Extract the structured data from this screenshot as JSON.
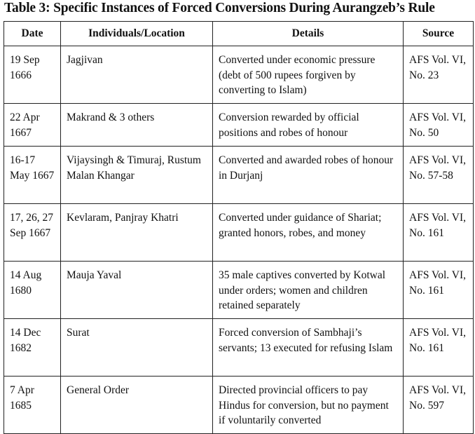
{
  "title": "Table 3: Specific Instances of Forced Conversions During Aurangzeb’s Rule",
  "headers": [
    "Date",
    "Individuals/Location",
    "Details",
    "Source"
  ],
  "rows": [
    {
      "date": "19 Sep 1666",
      "who": "Jagjivan",
      "details": "Converted under economic pressure (debt of 500 rupees forgiven by converting to Islam)",
      "source": "AFS Vol. VI, No. 23"
    },
    {
      "date": "22 Apr 1667",
      "who": "Makrand & 3 others",
      "details": "Conversion rewarded by official positions and robes of honour",
      "source": "AFS Vol. VI, No. 50"
    },
    {
      "date": "16-17 May 1667",
      "who": "Vijaysingh & Timuraj, Rustum Malan Khangar",
      "details": "Converted and awarded robes of honour in Durjanj",
      "source": "AFS Vol. VI, No. 57-58"
    },
    {
      "date": "17, 26, 27 Sep 1667",
      "who": "Kevlaram, Panjray Khatri",
      "details": "Converted under guidance of Shariat; granted honors, robes, and money",
      "source": "AFS Vol. VI, No. 161"
    },
    {
      "date": "14 Aug 1680",
      "who": "Mauja Yaval",
      "details": "35 male captives converted by Kotwal under orders; women and children retained separately",
      "source": "AFS Vol. VI, No. 161"
    },
    {
      "date": "14 Dec 1682",
      "who": "Surat",
      "details": "Forced conversion of Sambhaji’s servants; 13 executed for refusing Islam",
      "source": "AFS Vol. VI, No. 161"
    },
    {
      "date": "7 Apr 1685",
      "who": "General Order",
      "details": "Directed provincial officers to pay Hindus for conversion, but no payment if voluntarily converted",
      "source": "AFS Vol. VI, No. 597"
    }
  ]
}
